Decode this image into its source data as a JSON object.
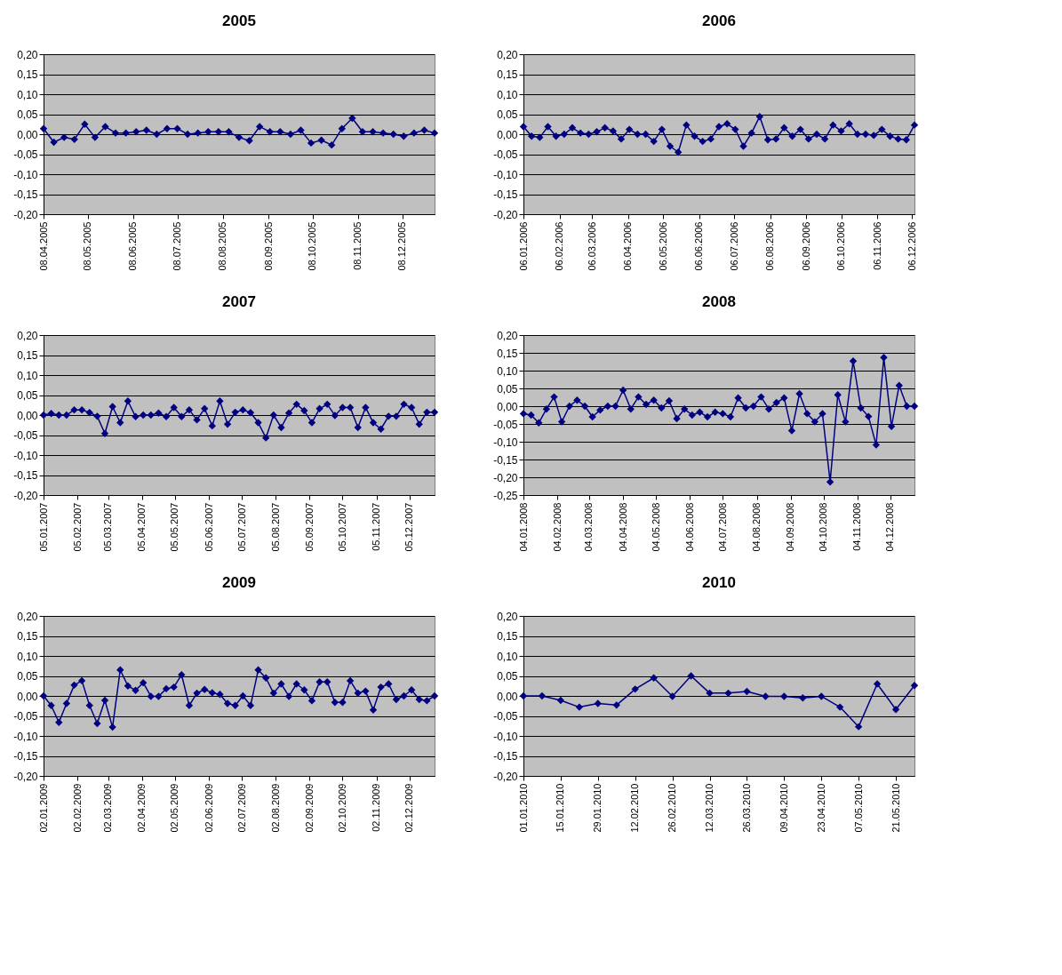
{
  "chart_data": [
    {
      "type": "line",
      "title": "2005",
      "color": "#000080",
      "marker": "diamond",
      "grid": "y",
      "ylim": [
        -0.2,
        0.2
      ],
      "yticks": [
        {
          "value": -0.2,
          "label": "-0,20"
        },
        {
          "value": -0.15,
          "label": "-0,15"
        },
        {
          "value": -0.1,
          "label": "-0,10"
        },
        {
          "value": -0.05,
          "label": "-0,05"
        },
        {
          "value": 0,
          "label": "0,00"
        },
        {
          "value": 0.05,
          "label": "0,05"
        },
        {
          "value": 0.1,
          "label": "0,10"
        },
        {
          "value": 0.15,
          "label": "0,15"
        },
        {
          "value": 0.2,
          "label": "0,20"
        }
      ],
      "xlim": [
        "2005-04-08",
        "2005-12-30"
      ],
      "xticks": [
        {
          "value": "2005-04-08",
          "label": "08.04.2005"
        },
        {
          "value": "2005-05-08",
          "label": "08.05.2005"
        },
        {
          "value": "2005-06-08",
          "label": "08.06.2005"
        },
        {
          "value": "2005-07-08",
          "label": "08.07.2005"
        },
        {
          "value": "2005-08-08",
          "label": "08.08.2005"
        },
        {
          "value": "2005-09-08",
          "label": "08.09.2005"
        },
        {
          "value": "2005-10-08",
          "label": "08.10.2005"
        },
        {
          "value": "2005-11-08",
          "label": "08.11.2005"
        },
        {
          "value": "2005-12-08",
          "label": "08.12.2005"
        }
      ],
      "x": [
        "2005-04-08",
        "2005-04-15",
        "2005-04-22",
        "2005-04-29",
        "2005-05-06",
        "2005-05-13",
        "2005-05-20",
        "2005-05-27",
        "2005-06-03",
        "2005-06-10",
        "2005-06-17",
        "2005-06-24",
        "2005-07-01",
        "2005-07-08",
        "2005-07-15",
        "2005-07-22",
        "2005-07-29",
        "2005-08-05",
        "2005-08-12",
        "2005-08-19",
        "2005-08-26",
        "2005-09-02",
        "2005-09-09",
        "2005-09-16",
        "2005-09-23",
        "2005-09-30",
        "2005-10-07",
        "2005-10-14",
        "2005-10-21",
        "2005-10-28",
        "2005-11-04",
        "2005-11-11",
        "2005-11-18",
        "2005-11-25",
        "2005-12-02",
        "2005-12-09",
        "2005-12-16",
        "2005-12-23",
        "2005-12-30"
      ],
      "values": [
        0.014,
        -0.02,
        -0.008,
        -0.013,
        0.025,
        -0.008,
        0.019,
        0.003,
        0.003,
        0.006,
        0.01,
        0,
        0.014,
        0.014,
        0,
        0.003,
        0.006,
        0.006,
        0.006,
        -0.008,
        -0.016,
        0.019,
        0.006,
        0.006,
        0,
        0.01,
        -0.022,
        -0.015,
        -0.027,
        0.014,
        0.04,
        0.006,
        0.006,
        0.003,
        0,
        -0.005,
        0.003,
        0.01,
        0.003
      ]
    },
    {
      "type": "line",
      "title": "2006",
      "color": "#000080",
      "marker": "diamond",
      "grid": "y",
      "ylim": [
        -0.2,
        0.2
      ],
      "yticks": [
        {
          "value": -0.2,
          "label": "-0,20"
        },
        {
          "value": -0.15,
          "label": "-0,15"
        },
        {
          "value": -0.1,
          "label": "-0,10"
        },
        {
          "value": -0.05,
          "label": "-0,05"
        },
        {
          "value": 0,
          "label": "0,00"
        },
        {
          "value": 0.05,
          "label": "0,05"
        },
        {
          "value": 0.1,
          "label": "0,10"
        },
        {
          "value": 0.15,
          "label": "0,15"
        },
        {
          "value": 0.2,
          "label": "0,20"
        }
      ],
      "xlim": [
        "2006-01-06",
        "2006-12-08"
      ],
      "xticks": [
        {
          "value": "2006-01-06",
          "label": "06.01.2006"
        },
        {
          "value": "2006-02-06",
          "label": "06.02.2006"
        },
        {
          "value": "2006-03-06",
          "label": "06.03.2006"
        },
        {
          "value": "2006-04-06",
          "label": "06.04.2006"
        },
        {
          "value": "2006-05-06",
          "label": "06.05.2006"
        },
        {
          "value": "2006-06-06",
          "label": "06.06.2006"
        },
        {
          "value": "2006-07-06",
          "label": "06.07.2006"
        },
        {
          "value": "2006-08-06",
          "label": "06.08.2006"
        },
        {
          "value": "2006-09-06",
          "label": "06.09.2006"
        },
        {
          "value": "2006-10-06",
          "label": "06.10.2006"
        },
        {
          "value": "2006-11-06",
          "label": "06.11.2006"
        },
        {
          "value": "2006-12-06",
          "label": "06.12.2006"
        }
      ],
      "x": [
        "2006-01-06",
        "2006-01-13",
        "2006-01-20",
        "2006-01-27",
        "2006-02-03",
        "2006-02-10",
        "2006-02-17",
        "2006-02-24",
        "2006-03-03",
        "2006-03-10",
        "2006-03-17",
        "2006-03-24",
        "2006-03-31",
        "2006-04-07",
        "2006-04-14",
        "2006-04-21",
        "2006-04-28",
        "2006-05-05",
        "2006-05-12",
        "2006-05-19",
        "2006-05-26",
        "2006-06-02",
        "2006-06-09",
        "2006-06-16",
        "2006-06-23",
        "2006-06-30",
        "2006-07-07",
        "2006-07-14",
        "2006-07-21",
        "2006-07-28",
        "2006-08-04",
        "2006-08-11",
        "2006-08-18",
        "2006-08-25",
        "2006-09-01",
        "2006-09-08",
        "2006-09-15",
        "2006-09-22",
        "2006-09-29",
        "2006-10-06",
        "2006-10-13",
        "2006-10-20",
        "2006-10-27",
        "2006-11-03",
        "2006-11-10",
        "2006-11-17",
        "2006-11-24",
        "2006-12-01",
        "2006-12-08"
      ],
      "values": [
        0.019,
        -0.005,
        -0.008,
        0.019,
        -0.005,
        0,
        0.016,
        0.003,
        0,
        0.006,
        0.016,
        0.008,
        -0.012,
        0.012,
        0,
        0,
        -0.018,
        0.012,
        -0.03,
        -0.045,
        0.023,
        -0.005,
        -0.018,
        -0.012,
        0.019,
        0.026,
        0.012,
        -0.03,
        0.003,
        0.044,
        -0.014,
        -0.012,
        0.016,
        -0.005,
        0.012,
        -0.012,
        0,
        -0.012,
        0.023,
        0.008,
        0.026,
        0,
        0,
        -0.003,
        0.012,
        -0.005,
        -0.012,
        -0.014,
        0.023
      ]
    },
    {
      "type": "line",
      "title": "2007",
      "color": "#000080",
      "marker": "diamond",
      "grid": "y",
      "ylim": [
        -0.2,
        0.2
      ],
      "yticks": [
        {
          "value": -0.2,
          "label": "-0,20"
        },
        {
          "value": -0.15,
          "label": "-0,15"
        },
        {
          "value": -0.1,
          "label": "-0,10"
        },
        {
          "value": -0.05,
          "label": "-0,05"
        },
        {
          "value": 0,
          "label": "0,00"
        },
        {
          "value": 0.05,
          "label": "0,05"
        },
        {
          "value": 0.1,
          "label": "0,10"
        },
        {
          "value": 0.15,
          "label": "0,15"
        },
        {
          "value": 0.2,
          "label": "0,20"
        }
      ],
      "xlim": [
        "2007-01-05",
        "2007-12-28"
      ],
      "xticks": [
        {
          "value": "2007-01-05",
          "label": "05.01.2007"
        },
        {
          "value": "2007-02-05",
          "label": "05.02.2007"
        },
        {
          "value": "2007-03-05",
          "label": "05.03.2007"
        },
        {
          "value": "2007-04-05",
          "label": "05.04.2007"
        },
        {
          "value": "2007-05-05",
          "label": "05.05.2007"
        },
        {
          "value": "2007-06-05",
          "label": "05.06.2007"
        },
        {
          "value": "2007-07-05",
          "label": "05.07.2007"
        },
        {
          "value": "2007-08-05",
          "label": "05.08.2007"
        },
        {
          "value": "2007-09-05",
          "label": "05.09.2007"
        },
        {
          "value": "2007-10-05",
          "label": "05.10.2007"
        },
        {
          "value": "2007-11-05",
          "label": "05.11.2007"
        },
        {
          "value": "2007-12-05",
          "label": "05.12.2007"
        }
      ],
      "x": [
        "2007-01-05",
        "2007-01-12",
        "2007-01-19",
        "2007-01-26",
        "2007-02-02",
        "2007-02-09",
        "2007-02-16",
        "2007-02-23",
        "2007-03-02",
        "2007-03-09",
        "2007-03-16",
        "2007-03-23",
        "2007-03-30",
        "2007-04-06",
        "2007-04-13",
        "2007-04-20",
        "2007-04-27",
        "2007-05-04",
        "2007-05-11",
        "2007-05-18",
        "2007-05-25",
        "2007-06-01",
        "2007-06-08",
        "2007-06-15",
        "2007-06-22",
        "2007-06-29",
        "2007-07-06",
        "2007-07-13",
        "2007-07-20",
        "2007-07-27",
        "2007-08-03",
        "2007-08-10",
        "2007-08-17",
        "2007-08-24",
        "2007-08-31",
        "2007-09-07",
        "2007-09-14",
        "2007-09-21",
        "2007-09-28",
        "2007-10-05",
        "2007-10-12",
        "2007-10-19",
        "2007-10-26",
        "2007-11-02",
        "2007-11-09",
        "2007-11-16",
        "2007-11-23",
        "2007-11-30",
        "2007-12-07",
        "2007-12-14",
        "2007-12-21",
        "2007-12-28"
      ],
      "values": [
        0,
        0.004,
        0,
        0,
        0.013,
        0.013,
        0.006,
        -0.003,
        -0.046,
        0.021,
        -0.019,
        0.035,
        -0.004,
        0,
        0,
        0.005,
        -0.004,
        0.019,
        -0.004,
        0.013,
        -0.012,
        0.016,
        -0.027,
        0.035,
        -0.023,
        0.007,
        0.013,
        0.006,
        -0.019,
        -0.057,
        0,
        -0.031,
        0.005,
        0.027,
        0.011,
        -0.019,
        0.016,
        0.027,
        -0.001,
        0.019,
        0.019,
        -0.031,
        0.019,
        -0.019,
        -0.035,
        -0.003,
        -0.003,
        0.027,
        0.019,
        -0.023,
        0.007,
        0.007
      ]
    },
    {
      "type": "line",
      "title": "2008",
      "color": "#000080",
      "marker": "diamond",
      "grid": "y",
      "ylim": [
        -0.25,
        0.2
      ],
      "yticks": [
        {
          "value": -0.25,
          "label": "-0,25"
        },
        {
          "value": -0.2,
          "label": "-0,20"
        },
        {
          "value": -0.15,
          "label": "-0,15"
        },
        {
          "value": -0.1,
          "label": "-0,10"
        },
        {
          "value": -0.05,
          "label": "-0,05"
        },
        {
          "value": 0,
          "label": "0,00"
        },
        {
          "value": 0.05,
          "label": "0,05"
        },
        {
          "value": 0.1,
          "label": "0,10"
        },
        {
          "value": 0.15,
          "label": "0,15"
        },
        {
          "value": 0.2,
          "label": "0,20"
        }
      ],
      "xlim": [
        "2008-01-04",
        "2008-12-26"
      ],
      "xticks": [
        {
          "value": "2008-01-04",
          "label": "04.01.2008"
        },
        {
          "value": "2008-02-04",
          "label": "04.02.2008"
        },
        {
          "value": "2008-03-04",
          "label": "04.03.2008"
        },
        {
          "value": "2008-04-04",
          "label": "04.04.2008"
        },
        {
          "value": "2008-05-04",
          "label": "04.05.2008"
        },
        {
          "value": "2008-06-04",
          "label": "04.06.2008"
        },
        {
          "value": "2008-07-04",
          "label": "04.07.2008"
        },
        {
          "value": "2008-08-04",
          "label": "04.08.2008"
        },
        {
          "value": "2008-09-04",
          "label": "04.09.2008"
        },
        {
          "value": "2008-10-04",
          "label": "04.10.2008"
        },
        {
          "value": "2008-11-04",
          "label": "04.11.2008"
        },
        {
          "value": "2008-12-04",
          "label": "04.12.2008"
        }
      ],
      "x": [
        "2008-01-04",
        "2008-01-11",
        "2008-01-18",
        "2008-01-25",
        "2008-02-01",
        "2008-02-08",
        "2008-02-15",
        "2008-02-22",
        "2008-02-29",
        "2008-03-07",
        "2008-03-14",
        "2008-03-21",
        "2008-03-28",
        "2008-04-04",
        "2008-04-11",
        "2008-04-18",
        "2008-04-25",
        "2008-05-02",
        "2008-05-09",
        "2008-05-16",
        "2008-05-23",
        "2008-05-30",
        "2008-06-06",
        "2008-06-13",
        "2008-06-20",
        "2008-06-27",
        "2008-07-04",
        "2008-07-11",
        "2008-07-18",
        "2008-07-25",
        "2008-08-01",
        "2008-08-08",
        "2008-08-15",
        "2008-08-22",
        "2008-08-29",
        "2008-09-05",
        "2008-09-12",
        "2008-09-19",
        "2008-09-26",
        "2008-10-03",
        "2008-10-10",
        "2008-10-17",
        "2008-10-24",
        "2008-10-31",
        "2008-11-07",
        "2008-11-14",
        "2008-11-21",
        "2008-11-28",
        "2008-12-05",
        "2008-12-12",
        "2008-12-19",
        "2008-12-26"
      ],
      "values": [
        -0.021,
        -0.025,
        -0.047,
        -0.008,
        0.026,
        -0.044,
        0,
        0.017,
        0,
        -0.03,
        -0.011,
        0,
        0,
        0.045,
        -0.008,
        0.026,
        0.005,
        0.017,
        -0.005,
        0.015,
        -0.035,
        -0.008,
        -0.025,
        -0.017,
        -0.03,
        -0.017,
        -0.021,
        -0.03,
        0.023,
        -0.005,
        0,
        0.026,
        -0.008,
        0.01,
        0.023,
        -0.069,
        0.035,
        -0.021,
        -0.044,
        -0.021,
        -0.213,
        0.032,
        -0.044,
        0.127,
        -0.005,
        -0.029,
        -0.109,
        0.137,
        -0.057,
        0.058,
        0,
        0
      ]
    },
    {
      "type": "line",
      "title": "2009",
      "color": "#000080",
      "marker": "diamond",
      "grid": "y",
      "ylim": [
        -0.2,
        0.2
      ],
      "yticks": [
        {
          "value": -0.2,
          "label": "-0,20"
        },
        {
          "value": -0.15,
          "label": "-0,15"
        },
        {
          "value": -0.1,
          "label": "-0,10"
        },
        {
          "value": -0.05,
          "label": "-0,05"
        },
        {
          "value": 0,
          "label": "0,00"
        },
        {
          "value": 0.05,
          "label": "0,05"
        },
        {
          "value": 0.1,
          "label": "0,10"
        },
        {
          "value": 0.15,
          "label": "0,15"
        },
        {
          "value": 0.2,
          "label": "0,20"
        }
      ],
      "xlim": [
        "2009-01-02",
        "2009-12-25"
      ],
      "xticks": [
        {
          "value": "2009-01-02",
          "label": "02.01.2009"
        },
        {
          "value": "2009-02-02",
          "label": "02.02.2009"
        },
        {
          "value": "2009-03-02",
          "label": "02.03.2009"
        },
        {
          "value": "2009-04-02",
          "label": "02.04.2009"
        },
        {
          "value": "2009-05-02",
          "label": "02.05.2009"
        },
        {
          "value": "2009-06-02",
          "label": "02.06.2009"
        },
        {
          "value": "2009-07-02",
          "label": "02.07.2009"
        },
        {
          "value": "2009-08-02",
          "label": "02.08.2009"
        },
        {
          "value": "2009-09-02",
          "label": "02.09.2009"
        },
        {
          "value": "2009-10-02",
          "label": "02.10.2009"
        },
        {
          "value": "2009-11-02",
          "label": "02.11.2009"
        },
        {
          "value": "2009-12-02",
          "label": "02.12.2009"
        }
      ],
      "x": [
        "2009-01-02",
        "2009-01-09",
        "2009-01-16",
        "2009-01-23",
        "2009-01-30",
        "2009-02-06",
        "2009-02-13",
        "2009-02-20",
        "2009-02-27",
        "2009-03-06",
        "2009-03-13",
        "2009-03-20",
        "2009-03-27",
        "2009-04-03",
        "2009-04-10",
        "2009-04-17",
        "2009-04-24",
        "2009-05-01",
        "2009-05-08",
        "2009-05-15",
        "2009-05-22",
        "2009-05-29",
        "2009-06-05",
        "2009-06-12",
        "2009-06-19",
        "2009-06-26",
        "2009-07-03",
        "2009-07-10",
        "2009-07-17",
        "2009-07-24",
        "2009-07-31",
        "2009-08-07",
        "2009-08-14",
        "2009-08-21",
        "2009-08-28",
        "2009-09-04",
        "2009-09-11",
        "2009-09-18",
        "2009-09-25",
        "2009-10-02",
        "2009-10-09",
        "2009-10-16",
        "2009-10-23",
        "2009-10-30",
        "2009-11-06",
        "2009-11-13",
        "2009-11-20",
        "2009-11-27",
        "2009-12-04",
        "2009-12-11",
        "2009-12-18",
        "2009-12-25"
      ],
      "values": [
        0,
        -0.024,
        -0.066,
        -0.019,
        0.027,
        0.038,
        -0.024,
        -0.069,
        -0.011,
        -0.078,
        0.065,
        0.025,
        0.014,
        0.033,
        -0.001,
        -0.001,
        0.018,
        0.022,
        0.053,
        -0.024,
        0.007,
        0.016,
        0.008,
        0.004,
        -0.019,
        -0.024,
        0,
        -0.024,
        0.065,
        0.045,
        0.007,
        0.03,
        -0.001,
        0.03,
        0.015,
        -0.012,
        0.035,
        0.035,
        -0.016,
        -0.016,
        0.038,
        0.007,
        0.012,
        -0.035,
        0.022,
        0.03,
        -0.009,
        0,
        0.015,
        -0.009,
        -0.012,
        0
      ]
    },
    {
      "type": "line",
      "title": "2010",
      "color": "#000080",
      "marker": "diamond",
      "grid": "y",
      "ylim": [
        -0.2,
        0.2
      ],
      "yticks": [
        {
          "value": -0.2,
          "label": "-0,20"
        },
        {
          "value": -0.15,
          "label": "-0,15"
        },
        {
          "value": -0.1,
          "label": "-0,10"
        },
        {
          "value": -0.05,
          "label": "-0,05"
        },
        {
          "value": 0,
          "label": "0,00"
        },
        {
          "value": 0.05,
          "label": "0,05"
        },
        {
          "value": 0.1,
          "label": "0,10"
        },
        {
          "value": 0.15,
          "label": "0,15"
        },
        {
          "value": 0.2,
          "label": "0,20"
        }
      ],
      "xlim": [
        "2010-01-01",
        "2010-05-28"
      ],
      "xticks": [
        {
          "value": "2010-01-01",
          "label": "01.01.2010"
        },
        {
          "value": "2010-01-15",
          "label": "15.01.2010"
        },
        {
          "value": "2010-01-29",
          "label": "29.01.2010"
        },
        {
          "value": "2010-02-12",
          "label": "12.02.2010"
        },
        {
          "value": "2010-02-26",
          "label": "26.02.2010"
        },
        {
          "value": "2010-03-12",
          "label": "12.03.2010"
        },
        {
          "value": "2010-03-26",
          "label": "26.03.2010"
        },
        {
          "value": "2010-04-09",
          "label": "09.04.2010"
        },
        {
          "value": "2010-04-23",
          "label": "23.04.2010"
        },
        {
          "value": "2010-05-07",
          "label": "07.05.2010"
        },
        {
          "value": "2010-05-21",
          "label": "21.05.2010"
        }
      ],
      "x": [
        "2010-01-01",
        "2010-01-08",
        "2010-01-15",
        "2010-01-22",
        "2010-01-29",
        "2010-02-05",
        "2010-02-12",
        "2010-02-19",
        "2010-02-26",
        "2010-03-05",
        "2010-03-12",
        "2010-03-19",
        "2010-03-26",
        "2010-04-02",
        "2010-04-09",
        "2010-04-16",
        "2010-04-23",
        "2010-04-30",
        "2010-05-07",
        "2010-05-14",
        "2010-05-21",
        "2010-05-28"
      ],
      "values": [
        0,
        0,
        -0.011,
        -0.028,
        -0.019,
        -0.023,
        0.017,
        0.045,
        -0.001,
        0.05,
        0.007,
        0.007,
        0.011,
        -0.001,
        -0.001,
        -0.005,
        -0.001,
        -0.028,
        -0.077,
        0.03,
        -0.034,
        0.026
      ]
    }
  ]
}
